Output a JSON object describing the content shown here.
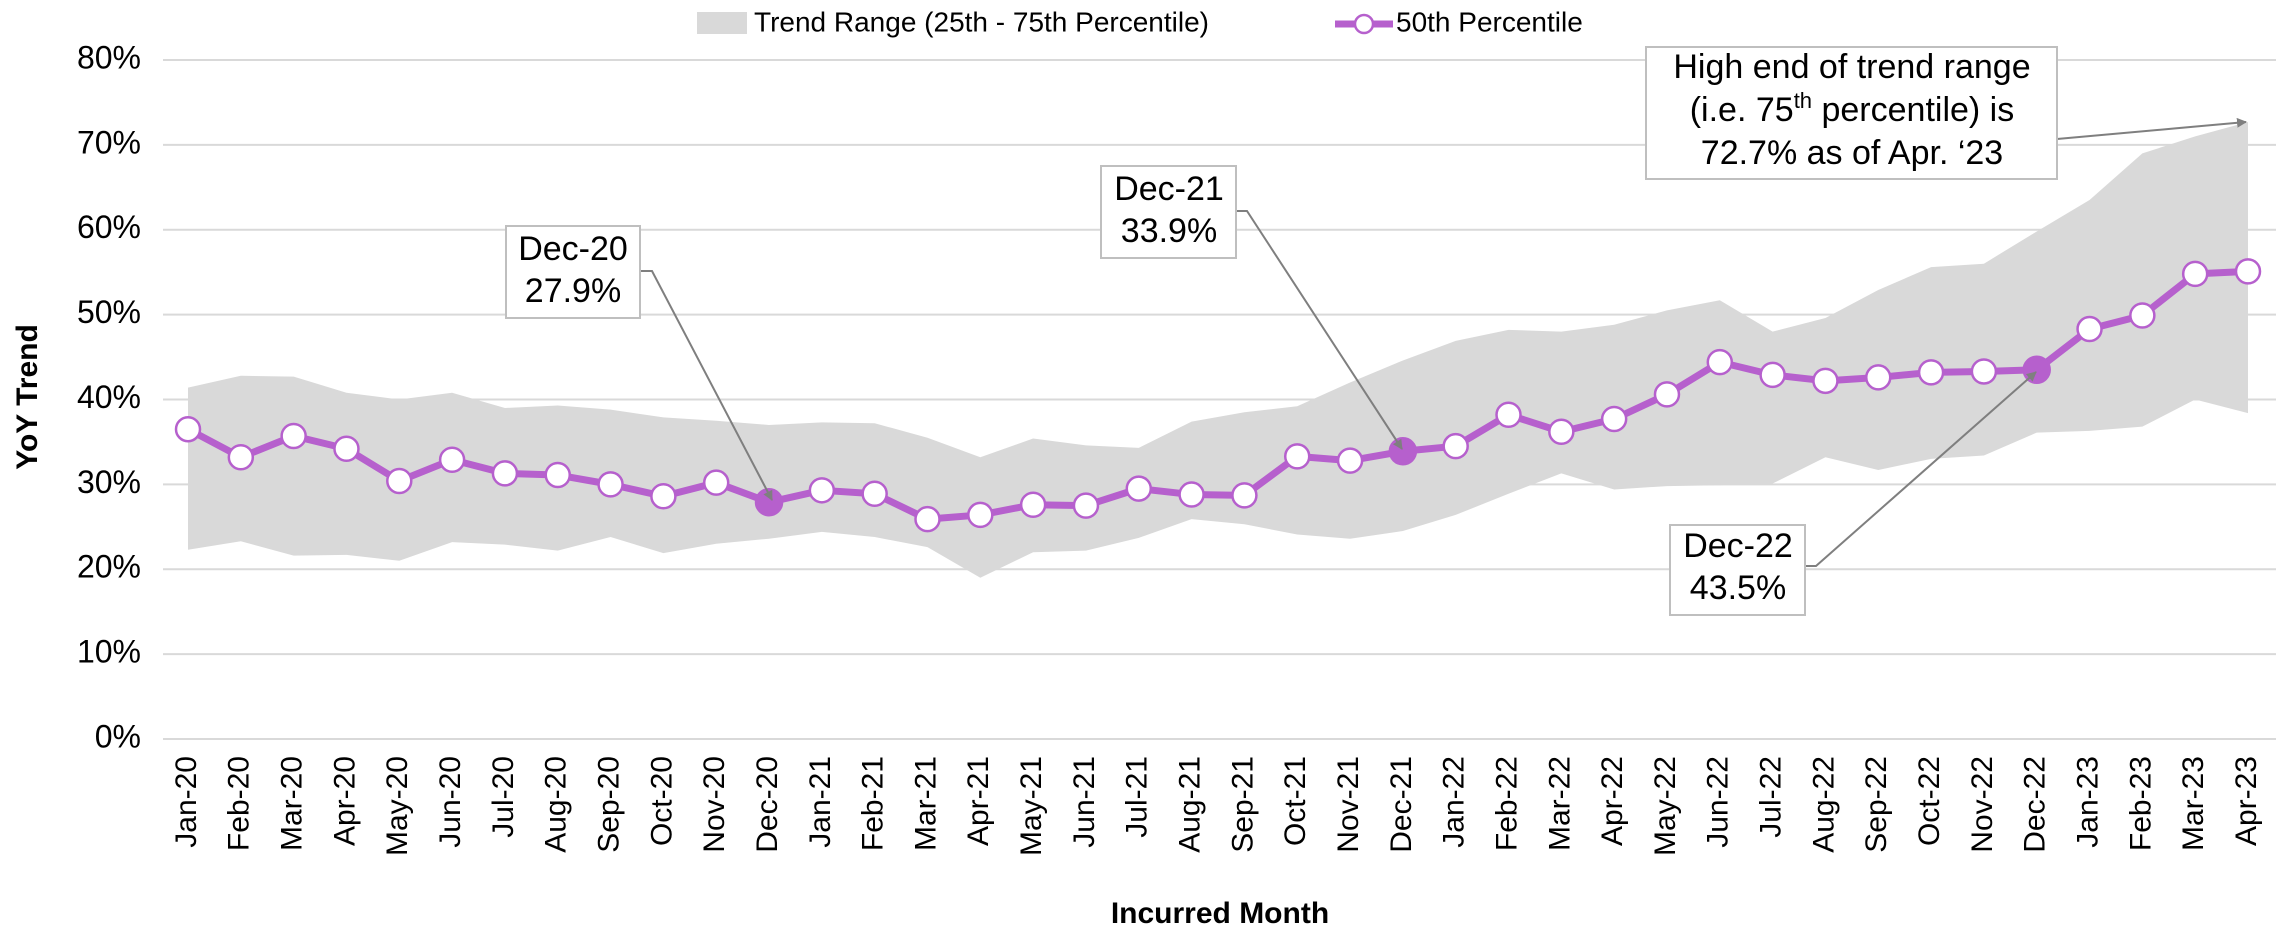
{
  "chart_data": {
    "type": "line",
    "x_label": "Incurred Month",
    "y_label": "YoY Trend",
    "categories": [
      "Jan-20",
      "Feb-20",
      "Mar-20",
      "Apr-20",
      "May-20",
      "Jun-20",
      "Jul-20",
      "Aug-20",
      "Sep-20",
      "Oct-20",
      "Nov-20",
      "Dec-20",
      "Jan-21",
      "Feb-21",
      "Mar-21",
      "Apr-21",
      "May-21",
      "Jun-21",
      "Jul-21",
      "Aug-21",
      "Sep-21",
      "Oct-21",
      "Nov-21",
      "Dec-21",
      "Jan-22",
      "Feb-22",
      "Mar-22",
      "Apr-22",
      "May-22",
      "Jun-22",
      "Jul-22",
      "Aug-22",
      "Sep-22",
      "Oct-22",
      "Nov-22",
      "Dec-22",
      "Jan-23",
      "Feb-23",
      "Mar-23",
      "Apr-23"
    ],
    "series": [
      {
        "name": "Trend Range (25th - 75th Percentile)",
        "color": "#d9d9d9",
        "upper": [
          41.4,
          42.8,
          42.7,
          40.8,
          40.0,
          40.8,
          39.0,
          39.3,
          38.8,
          37.9,
          37.5,
          37.0,
          37.3,
          37.2,
          35.5,
          33.2,
          35.4,
          34.6,
          34.3,
          37.4,
          38.5,
          39.2,
          42.0,
          44.6,
          46.9,
          48.2,
          48.0,
          48.8,
          50.5,
          51.7,
          48.0,
          49.6,
          52.9,
          55.6,
          56.0,
          59.8,
          63.5,
          69.0,
          71.0,
          72.7
        ],
        "lower": [
          22.3,
          23.3,
          21.6,
          21.7,
          21.0,
          23.2,
          22.9,
          22.2,
          23.8,
          21.9,
          23.0,
          23.6,
          24.4,
          23.8,
          22.6,
          19.0,
          22.0,
          22.2,
          23.7,
          25.9,
          25.3,
          24.1,
          23.6,
          24.5,
          26.4,
          28.9,
          31.3,
          29.4,
          29.8,
          29.9,
          30.1,
          33.2,
          31.7,
          33.0,
          33.4,
          36.1,
          36.3,
          36.8,
          40.0,
          38.4
        ]
      },
      {
        "name": "50th Percentile",
        "color": "#b660cd",
        "values": [
          36.5,
          33.2,
          35.7,
          34.2,
          30.4,
          32.9,
          31.3,
          31.1,
          30.0,
          28.6,
          30.2,
          27.9,
          29.3,
          28.9,
          25.9,
          26.4,
          27.6,
          27.5,
          29.5,
          28.8,
          28.7,
          33.3,
          32.8,
          33.9,
          34.5,
          38.2,
          36.2,
          37.7,
          40.6,
          44.4,
          42.9,
          42.2,
          42.6,
          43.2,
          43.3,
          43.5,
          48.3,
          49.9,
          54.8,
          55.1
        ]
      }
    ],
    "ylim": [
      0,
      80
    ],
    "yticks": [
      {
        "value": 0,
        "label": "0%"
      },
      {
        "value": 10,
        "label": "10%"
      },
      {
        "value": 20,
        "label": "20%"
      },
      {
        "value": 30,
        "label": "30%"
      },
      {
        "value": 40,
        "label": "40%"
      },
      {
        "value": 50,
        "label": "50%"
      },
      {
        "value": 60,
        "label": "60%"
      },
      {
        "value": 70,
        "label": "70%"
      },
      {
        "value": 80,
        "label": "80%"
      }
    ],
    "grid": true,
    "annotations": [
      {
        "lines": [
          "Dec-20",
          "27.9%"
        ]
      },
      {
        "lines": [
          "Dec-21",
          "33.9%"
        ]
      },
      {
        "lines": [
          "Dec-22",
          "43.5%"
        ]
      },
      {
        "lines": [
          "High end of trend range",
          [
            "(i.e. 75",
            "th",
            " percentile) is"
          ],
          "72.7% as of Apr. ‘23"
        ]
      }
    ]
  }
}
